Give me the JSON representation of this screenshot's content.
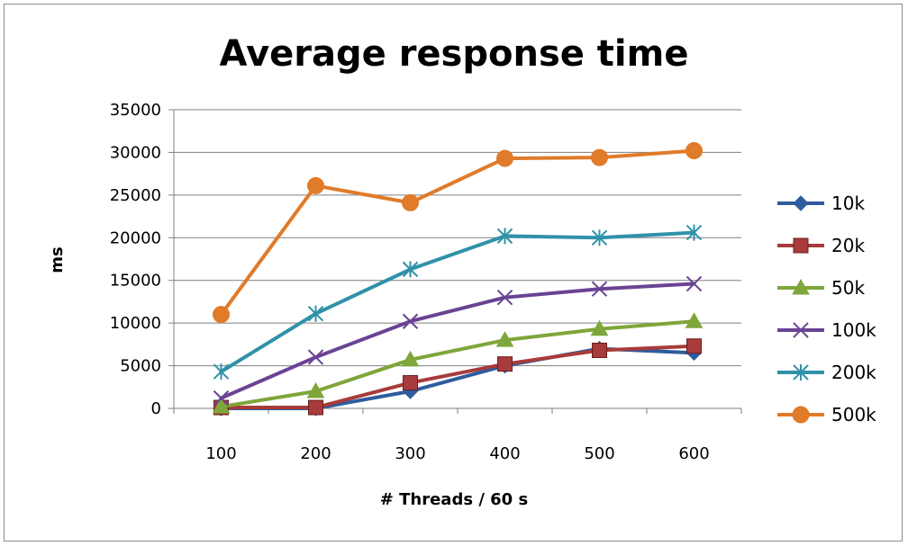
{
  "chart_data": {
    "type": "line",
    "title": "Average response time",
    "xlabel": "# Threads  / 60 s",
    "ylabel": "ms",
    "categories": [
      "100",
      "200",
      "300",
      "400",
      "500",
      "600"
    ],
    "ylim": [
      0,
      35000
    ],
    "yticks": [
      0,
      5000,
      10000,
      15000,
      20000,
      25000,
      30000,
      35000
    ],
    "grid": true,
    "legend_position": "right",
    "series": [
      {
        "name": "10k",
        "color": "#2e5c9e",
        "marker": "diamond",
        "values": [
          0,
          0,
          2000,
          5000,
          7000,
          6500
        ]
      },
      {
        "name": "20k",
        "color": "#a83b3b",
        "marker": "square",
        "values": [
          100,
          100,
          3000,
          5200,
          6800,
          7300
        ]
      },
      {
        "name": "50k",
        "color": "#7ea63a",
        "marker": "triangle",
        "values": [
          200,
          2000,
          5700,
          8000,
          9300,
          10200
        ]
      },
      {
        "name": "100k",
        "color": "#6a4394",
        "marker": "x",
        "values": [
          1200,
          6000,
          10200,
          13000,
          14000,
          14600
        ]
      },
      {
        "name": "200k",
        "color": "#2f92a8",
        "marker": "star",
        "values": [
          4300,
          11100,
          16300,
          20200,
          20000,
          20600
        ]
      },
      {
        "name": "500k",
        "color": "#e07b2a",
        "marker": "circle",
        "values": [
          11000,
          26100,
          24100,
          29300,
          29400,
          30200
        ]
      }
    ]
  }
}
